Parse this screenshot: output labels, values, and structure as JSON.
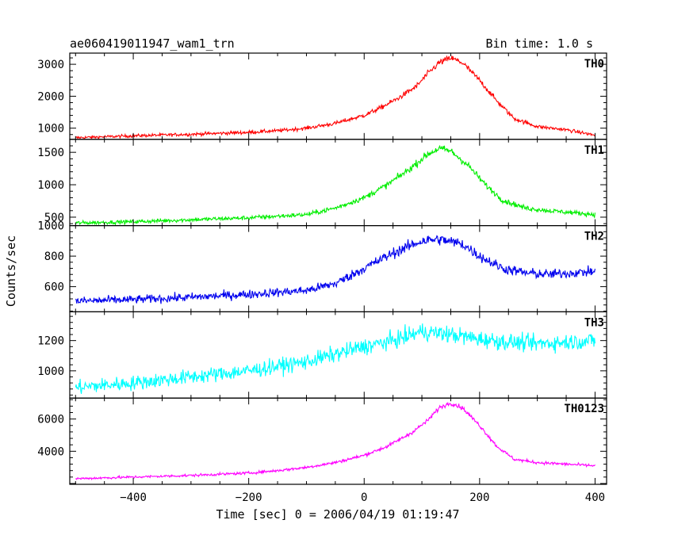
{
  "header": {
    "title": "ae060419011947_wam1_trn",
    "bin_time": "Bin time: 1.0 s"
  },
  "chart_data": {
    "type": "line",
    "title": "ae060419011947_wam1_trn",
    "subtitle": "Bin time: 1.0 s",
    "xlabel": "Time [sec] 0 = 2006/04/19 01:19:47",
    "ylabel": "Counts/sec",
    "xlim": [
      -510,
      420
    ],
    "x_ticks": [
      -400,
      -200,
      0,
      200,
      400
    ],
    "x_tick_labels": [
      "−400",
      "−200",
      "0",
      "200",
      "400"
    ],
    "grid": false,
    "x_range_data": [
      -500,
      400
    ],
    "panels": [
      {
        "name": "TH0",
        "color": "#ff0000",
        "ylim": [
          650,
          3350
        ],
        "y_ticks": [
          1000,
          2000,
          3000
        ],
        "x": [
          -500,
          -400,
          -300,
          -200,
          -150,
          -100,
          -50,
          0,
          30,
          60,
          90,
          110,
          130,
          150,
          170,
          200,
          230,
          260,
          300,
          350,
          400
        ],
        "values": [
          700,
          760,
          810,
          870,
          920,
          1000,
          1150,
          1400,
          1650,
          1950,
          2300,
          2700,
          3050,
          3200,
          3050,
          2500,
          1850,
          1300,
          1050,
          950,
          780
        ],
        "noise": 55
      },
      {
        "name": "TH1",
        "color": "#00ee00",
        "ylim": [
          370,
          1700
        ],
        "y_ticks": [
          500,
          1000,
          1500
        ],
        "x": [
          -500,
          -400,
          -300,
          -200,
          -100,
          -50,
          0,
          40,
          80,
          110,
          130,
          150,
          180,
          210,
          240,
          280,
          320,
          360,
          400
        ],
        "values": [
          410,
          430,
          460,
          490,
          540,
          640,
          800,
          1000,
          1250,
          1470,
          1560,
          1520,
          1300,
          1000,
          760,
          640,
          600,
          570,
          540
        ],
        "noise": 35
      },
      {
        "name": "TH2",
        "color": "#0000ee",
        "ylim": [
          435,
          1000
        ],
        "y_ticks": [
          600,
          800,
          1000
        ],
        "x": [
          -500,
          -400,
          -300,
          -200,
          -100,
          -50,
          0,
          50,
          100,
          130,
          170,
          200,
          240,
          280,
          320,
          360,
          400
        ],
        "values": [
          505,
          515,
          530,
          550,
          575,
          620,
          720,
          820,
          900,
          910,
          880,
          800,
          720,
          690,
          680,
          690,
          700
        ],
        "noise": 32
      },
      {
        "name": "TH3",
        "color": "#00ffff",
        "ylim": [
          820,
          1390
        ],
        "y_ticks": [
          1000,
          1200
        ],
        "x": [
          -500,
          -400,
          -300,
          -200,
          -100,
          0,
          50,
          100,
          150,
          200,
          250,
          300,
          350,
          400
        ],
        "values": [
          890,
          920,
          960,
          1000,
          1060,
          1160,
          1200,
          1260,
          1240,
          1210,
          1190,
          1180,
          1190,
          1200
        ],
        "noise": 55
      },
      {
        "name": "TH0123",
        "color": "#ff00ff",
        "ylim": [
          1950,
          7300
        ],
        "y_ticks": [
          4000,
          6000
        ],
        "x": [
          -500,
          -400,
          -300,
          -200,
          -150,
          -100,
          -50,
          0,
          40,
          80,
          110,
          130,
          150,
          170,
          200,
          230,
          260,
          300,
          350,
          400
        ],
        "values": [
          2300,
          2400,
          2500,
          2650,
          2800,
          3000,
          3300,
          3750,
          4300,
          5100,
          5900,
          6700,
          7000,
          6700,
          5600,
          4300,
          3500,
          3300,
          3200,
          3100
        ],
        "noise": 90
      }
    ]
  }
}
